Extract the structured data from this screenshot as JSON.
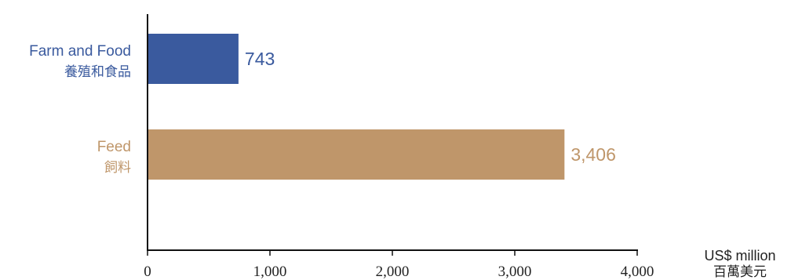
{
  "chart_data": {
    "type": "bar",
    "orientation": "horizontal",
    "categories": [
      {
        "label_en": "Farm and Food",
        "label_zh": "養殖和食品",
        "value": 743,
        "value_label": "743",
        "color": "#3a5a9e"
      },
      {
        "label_en": "Feed",
        "label_zh": "飼料",
        "value": 3406,
        "value_label": "3,406",
        "color": "#bf966a"
      }
    ],
    "xlim": [
      0,
      4000
    ],
    "ticks": [
      {
        "value": 0,
        "label": "0"
      },
      {
        "value": 1000,
        "label": "1,000"
      },
      {
        "value": 2000,
        "label": "2,000"
      },
      {
        "value": 3000,
        "label": "3,000"
      },
      {
        "value": 4000,
        "label": "4,000"
      }
    ],
    "unit_en": "US$ million",
    "unit_zh": "百萬美元",
    "grid": false
  }
}
